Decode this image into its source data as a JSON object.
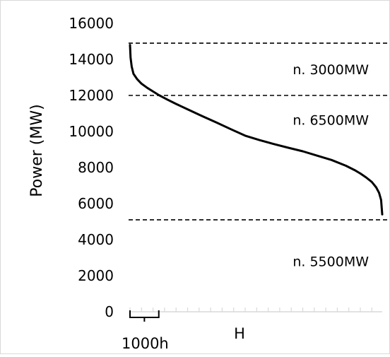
{
  "chart_data": {
    "type": "line",
    "title": "",
    "ylabel": "Power (MW)",
    "xlabel": "H",
    "ylim": [
      0,
      16000
    ],
    "yticks": [
      0,
      2000,
      4000,
      6000,
      8000,
      10000,
      12000,
      14000,
      16000
    ],
    "ytick_labels": [
      "0",
      "2000",
      "4000",
      "6000",
      "8000",
      "10000",
      "12000",
      "14000",
      "16000"
    ],
    "xlim": [
      0,
      8760
    ],
    "x_unit_bracket_hours": 1000,
    "x_minor_tick_step_hours": 400,
    "grid": false,
    "series": [
      {
        "name": "",
        "x": [
          0,
          20,
          60,
          120,
          250,
          400,
          600,
          800,
          1000,
          1300,
          1600,
          2000,
          2500,
          3000,
          3500,
          4000,
          4500,
          5000,
          5500,
          6000,
          6500,
          7000,
          7500,
          7800,
          8000,
          8200,
          8400,
          8550,
          8650,
          8720,
          8760
        ],
        "values": [
          14800,
          14100,
          13600,
          13200,
          12900,
          12650,
          12420,
          12220,
          12020,
          11770,
          11530,
          11230,
          10860,
          10500,
          10130,
          9770,
          9520,
          9300,
          9100,
          8900,
          8660,
          8420,
          8100,
          7860,
          7670,
          7450,
          7200,
          6900,
          6600,
          6200,
          5400
        ]
      }
    ],
    "thresholds": [
      {
        "value": 14900,
        "style": "dashed"
      },
      {
        "value": 12000,
        "style": "dashed"
      },
      {
        "value": 5100,
        "style": "dashed"
      }
    ],
    "bands": [
      {
        "label": "n. 3000MW",
        "center": 13450
      },
      {
        "label": "n. 6500MW",
        "center": 10650
      },
      {
        "label": "n. 5500MW",
        "center": 2800
      }
    ],
    "bracket_label": "1000h"
  }
}
